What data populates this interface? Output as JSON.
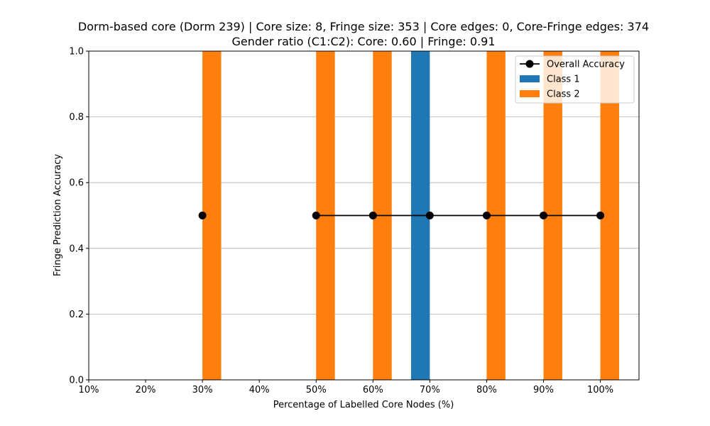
{
  "chart_data": {
    "type": "bar",
    "title": "Dorm-based core (Dorm 239) | Core size: 8, Fringe size: 353 | Core edges: 0, Core-Fringe edges: 374",
    "subtitle": "Gender ratio (C1:C2): Core: 0.60 | Fringe: 0.91",
    "xlabel": "Percentage of Labelled Core Nodes (%)",
    "ylabel": "Fringe Prediction Accuracy",
    "xlim": [
      10,
      106.8
    ],
    "ylim": [
      0,
      1
    ],
    "x_ticks": [
      "10%",
      "20%",
      "30%",
      "40%",
      "50%",
      "60%",
      "70%",
      "80%",
      "90%",
      "100%"
    ],
    "x_tick_values": [
      10,
      20,
      30,
      40,
      50,
      60,
      70,
      80,
      90,
      100
    ],
    "y_ticks": [
      "0.0",
      "0.2",
      "0.4",
      "0.6",
      "0.8",
      "1.0"
    ],
    "y_tick_values": [
      0,
      0.2,
      0.4,
      0.6,
      0.8,
      1.0
    ],
    "grid": "y",
    "legend_position": "top-right",
    "x": [
      30,
      50,
      60,
      70,
      80,
      90,
      100
    ],
    "series": [
      {
        "name": "Overall Accuracy",
        "kind": "line",
        "color": "#000000",
        "values": [
          0.5,
          0.5,
          0.5,
          0.5,
          0.5,
          0.5,
          0.5
        ],
        "segments": [
          [
            30
          ],
          [
            50,
            60,
            70,
            80,
            90,
            100
          ]
        ]
      },
      {
        "name": "Class 1",
        "kind": "bar",
        "color": "#1f77b4",
        "values": [
          0.0,
          0.0,
          0.0,
          1.0,
          0.0,
          0.0,
          0.0
        ]
      },
      {
        "name": "Class 2",
        "kind": "bar",
        "color": "#ff7f0e",
        "values": [
          1.0,
          1.0,
          1.0,
          0.0,
          1.0,
          1.0,
          1.0
        ]
      }
    ]
  }
}
